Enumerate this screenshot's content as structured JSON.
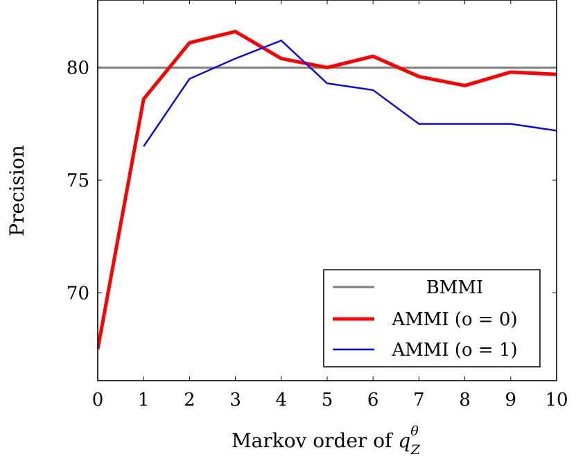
{
  "chart_data": {
    "type": "line",
    "xlabel": "Markov order of ",
    "xlabel_var": "q",
    "xlabel_sup": "θ",
    "xlabel_sub": "Z",
    "ylabel": "Precision",
    "xlim": [
      0,
      10
    ],
    "ylim": [
      66.1,
      83
    ],
    "x_ticks": [
      0,
      1,
      2,
      3,
      4,
      5,
      6,
      7,
      8,
      9,
      10
    ],
    "y_ticks": [
      70,
      75,
      80
    ],
    "grid": false,
    "legend_position": "bottom-right",
    "series": [
      {
        "name": "BMMI",
        "color": "#808080",
        "points": [
          [
            0,
            80.0
          ],
          [
            10,
            80.0
          ]
        ]
      },
      {
        "name": "AMMI (o = 0)",
        "color": "#ff0000",
        "points": [
          [
            0,
            67.5
          ],
          [
            1,
            78.6
          ],
          [
            2,
            81.1
          ],
          [
            3,
            81.6
          ],
          [
            4,
            80.4
          ],
          [
            5,
            80.0
          ],
          [
            6,
            80.5
          ],
          [
            7,
            79.6
          ],
          [
            8,
            79.2
          ],
          [
            9,
            79.8
          ],
          [
            10,
            79.7
          ]
        ]
      },
      {
        "name": "AMMI (o = 1)",
        "color": "#0000ff",
        "points": [
          [
            1,
            76.5
          ],
          [
            2,
            79.5
          ],
          [
            3,
            80.4
          ],
          [
            4,
            81.2
          ],
          [
            5,
            79.3
          ],
          [
            6,
            79.0
          ],
          [
            7,
            77.5
          ],
          [
            8,
            77.5
          ],
          [
            9,
            77.5
          ],
          [
            10,
            77.2
          ]
        ]
      }
    ]
  }
}
